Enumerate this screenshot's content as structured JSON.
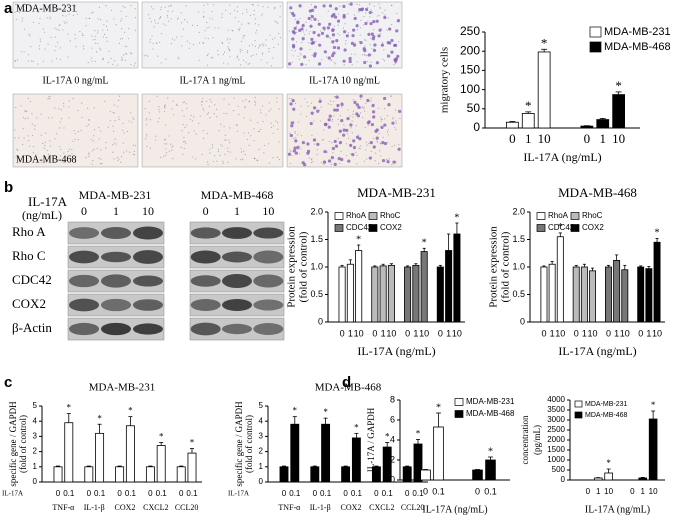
{
  "panel_letters": [
    "a",
    "b",
    "c",
    "d"
  ],
  "micrographs": {
    "cell_lines": [
      "MDA-MB-231",
      "MDA-MB-468"
    ],
    "conditions": [
      "IL-17A 0 ng/mL",
      "IL-17A 1 ng/mL",
      "IL-17A 10 ng/mL"
    ]
  },
  "western": {
    "treatment": "IL-17A",
    "unit": "(ng/mL)",
    "cell_lines": [
      "MDA-MB-231",
      "MDA-MB-468"
    ],
    "doses": [
      "0",
      "1",
      "10"
    ],
    "proteins": [
      "Rho A",
      "Rho C",
      "CDC42",
      "COX2",
      "β-Actin"
    ]
  },
  "chart_data": [
    {
      "type": "bar",
      "xlabel": "IL-17A (ng/mL)",
      "ylabel": [
        "migratory cells"
      ],
      "categories": [
        "0",
        "1",
        "10"
      ],
      "ylim": [
        0,
        250
      ],
      "yticks": [
        0,
        50,
        100,
        150,
        200,
        250
      ],
      "legend": "top-right",
      "series": [
        {
          "name": "MDA-MB-231",
          "color": "#ffffff",
          "values": [
            15,
            38,
            198
          ],
          "errors": [
            2,
            4,
            7
          ],
          "stars": [
            null,
            "*",
            "*"
          ]
        },
        {
          "name": "MDA-MB-468",
          "color": "#000000",
          "values": [
            5,
            22,
            87
          ],
          "errors": [
            1,
            3,
            7
          ],
          "stars": [
            null,
            null,
            "*"
          ]
        }
      ]
    },
    {
      "type": "bar",
      "title": "MDA-MB-231",
      "xlabel": "IL-17A (ng/mL)",
      "ylabel": [
        "Protein expression",
        "(fold of control)"
      ],
      "categories": [
        "0",
        "1",
        "10"
      ],
      "ylim": [
        0,
        2
      ],
      "yticks": [
        0,
        0.5,
        {
          "value": 1,
          "label": "1.0"
        },
        1.5,
        {
          "value": 2,
          "label": "2.0"
        }
      ],
      "legend": "top-left",
      "series": [
        {
          "name": "RhoA",
          "color": "#ffffff",
          "values": [
            1,
            1.05,
            1.3
          ],
          "errors": [
            0.03,
            0.08,
            0.1
          ],
          "stars": [
            null,
            null,
            "*"
          ]
        },
        {
          "name": "RhoC",
          "color": "#bbbbbb",
          "values": [
            1,
            1.02,
            1.03
          ],
          "errors": [
            0.02,
            0.03,
            0.03
          ],
          "stars": [
            null,
            null,
            null
          ]
        },
        {
          "name": "CDC42",
          "color": "#777777",
          "values": [
            1,
            1.03,
            1.28
          ],
          "errors": [
            0.02,
            0.03,
            0.06
          ],
          "stars": [
            null,
            null,
            "*"
          ]
        },
        {
          "name": "COX2",
          "color": "#000000",
          "values": [
            1,
            1.3,
            1.6
          ],
          "errors": [
            0.03,
            0.3,
            0.2
          ],
          "stars": [
            null,
            null,
            "*"
          ]
        }
      ]
    },
    {
      "type": "bar",
      "title": "MDA-MB-468",
      "xlabel": "IL-17A (ng/mL)",
      "ylabel": [
        "Protein expression",
        "(fold of control)"
      ],
      "categories": [
        "0",
        "1",
        "10"
      ],
      "ylim": [
        0,
        2
      ],
      "yticks": [
        0,
        0.5,
        {
          "value": 1,
          "label": "1.0"
        },
        1.5,
        {
          "value": 2,
          "label": "2.0"
        }
      ],
      "legend": "top-left",
      "series": [
        {
          "name": "RhoA",
          "color": "#ffffff",
          "values": [
            1,
            1.05,
            1.55
          ],
          "errors": [
            0.02,
            0.05,
            0.07
          ],
          "stars": [
            null,
            null,
            "*"
          ]
        },
        {
          "name": "RhoC",
          "color": "#bbbbbb",
          "values": [
            1,
            1.0,
            0.93
          ],
          "errors": [
            0.03,
            0.05,
            0.05
          ],
          "stars": [
            null,
            null,
            null
          ]
        },
        {
          "name": "CDC42",
          "color": "#777777",
          "values": [
            1,
            1.12,
            0.95
          ],
          "errors": [
            0.03,
            0.1,
            0.08
          ],
          "stars": [
            null,
            null,
            null
          ]
        },
        {
          "name": "COX2",
          "color": "#000000",
          "values": [
            1,
            0.97,
            1.45
          ],
          "errors": [
            0.02,
            0.04,
            0.07
          ],
          "stars": [
            null,
            null,
            "*"
          ]
        }
      ]
    },
    {
      "type": "bar",
      "title": "MDA-MB-231",
      "ylabel": [
        "specific gene / GAPDH",
        "(fold of control)"
      ],
      "x_row_label": "IL-17A",
      "categories": [
        "0",
        "0.1"
      ],
      "ylim": [
        0,
        5
      ],
      "yticks": [
        0,
        1,
        2,
        3,
        4,
        5
      ],
      "group_labels": true,
      "series": [
        {
          "name": "TNF-α",
          "color": "#ffffff",
          "values": [
            1,
            3.9
          ],
          "errors": [
            0.05,
            0.6
          ],
          "stars": [
            null,
            "*"
          ]
        },
        {
          "name": "IL-1-β",
          "color": "#ffffff",
          "values": [
            1,
            3.2
          ],
          "errors": [
            0.05,
            0.6
          ],
          "stars": [
            null,
            "*"
          ]
        },
        {
          "name": "COX2",
          "color": "#ffffff",
          "values": [
            1,
            3.7
          ],
          "errors": [
            0.05,
            0.6
          ],
          "stars": [
            null,
            "*"
          ]
        },
        {
          "name": "CXCL2",
          "color": "#ffffff",
          "values": [
            1,
            2.4
          ],
          "errors": [
            0.05,
            0.2
          ],
          "stars": [
            null,
            "*"
          ]
        },
        {
          "name": "CCL20",
          "color": "#ffffff",
          "values": [
            1,
            1.9
          ],
          "errors": [
            0.05,
            0.3
          ],
          "stars": [
            null,
            "*"
          ]
        }
      ]
    },
    {
      "type": "bar",
      "title": "MDA-MB-468",
      "ylabel": [
        "specific gene / GAPDH",
        "(fold of control)"
      ],
      "x_row_label": "IL-17A",
      "categories": [
        "0",
        "0.1"
      ],
      "ylim": [
        0,
        5
      ],
      "yticks": [
        0,
        1,
        2,
        3,
        4,
        5
      ],
      "group_labels": true,
      "series": [
        {
          "name": "TNF-α",
          "color": "#000000",
          "values": [
            1,
            3.8
          ],
          "errors": [
            0.05,
            0.5
          ],
          "stars": [
            null,
            "*"
          ]
        },
        {
          "name": "IL-1-β",
          "color": "#000000",
          "values": [
            1,
            3.8
          ],
          "errors": [
            0.05,
            0.4
          ],
          "stars": [
            null,
            "*"
          ]
        },
        {
          "name": "COX2",
          "color": "#000000",
          "values": [
            1,
            2.9
          ],
          "errors": [
            0.05,
            0.3
          ],
          "stars": [
            null,
            "*"
          ]
        },
        {
          "name": "CXCL2",
          "color": "#000000",
          "values": [
            1,
            2.3
          ],
          "errors": [
            0.05,
            0.3
          ],
          "stars": [
            null,
            "*"
          ]
        },
        {
          "name": "CCL20",
          "color": "#000000",
          "values": [
            1,
            2.5
          ],
          "errors": [
            0.05,
            0.3
          ],
          "stars": [
            null,
            "*"
          ]
        }
      ]
    },
    {
      "type": "bar",
      "xlabel": "IL-17A (ng/mL)",
      "ylabel": [
        "IL-17A / GAPDH"
      ],
      "categories": [
        "0",
        "0.1"
      ],
      "ylim": [
        0,
        8
      ],
      "yticks": [
        0,
        2,
        4,
        6,
        8
      ],
      "legend": "top-right",
      "series": [
        {
          "name": "MDA-MB-231",
          "color": "#ffffff",
          "values": [
            1,
            5.3
          ],
          "errors": [
            0.05,
            1.4
          ],
          "stars": [
            null,
            "*"
          ]
        },
        {
          "name": "MDA-MB-468",
          "color": "#000000",
          "values": [
            1,
            2.0
          ],
          "errors": [
            0.05,
            0.3
          ],
          "stars": [
            null,
            "*"
          ]
        }
      ]
    },
    {
      "type": "bar",
      "xlabel": "IL-17A (ng/mL)",
      "ylabel": [
        "concentration",
        "(pg/mL)"
      ],
      "categories": [
        "0",
        "1",
        "10"
      ],
      "ylim": [
        0,
        4000
      ],
      "yticks": [
        0,
        500,
        1000,
        1500,
        2000,
        2500,
        3000,
        3500,
        4000
      ],
      "legend": "top-left",
      "series": [
        {
          "name": "MDA-MB-231",
          "color": "#ffffff",
          "values": [
            0,
            100,
            350
          ],
          "errors": [
            0,
            20,
            200
          ],
          "stars": [
            null,
            null,
            "*"
          ]
        },
        {
          "name": "MDA-MB-468",
          "color": "#000000",
          "values": [
            0,
            100,
            3050
          ],
          "errors": [
            0,
            30,
            400
          ],
          "stars": [
            null,
            null,
            "*"
          ]
        }
      ]
    }
  ]
}
